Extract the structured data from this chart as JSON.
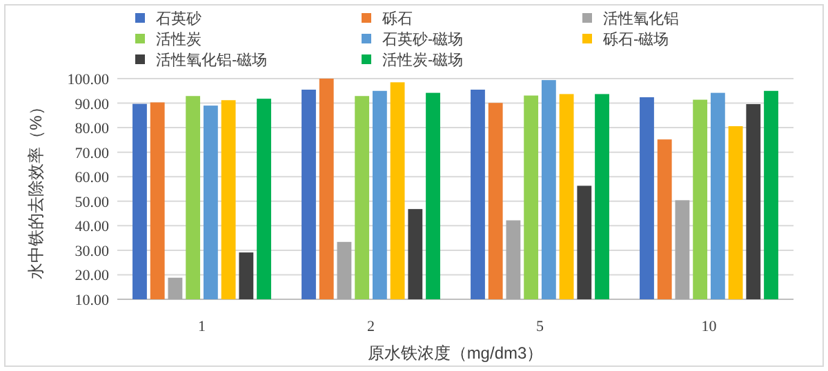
{
  "chart_data": {
    "type": "bar",
    "xlabel": "原水铁浓度（mg/dm3）",
    "ylabel": "水中铁的去除效率（%）",
    "categories": [
      "1",
      "2",
      "5",
      "10"
    ],
    "series": [
      {
        "name": "石英砂",
        "color": "#4472c4",
        "values": [
          89.7,
          95.5,
          95.5,
          92.4
        ]
      },
      {
        "name": "砾石",
        "color": "#ed7d31",
        "values": [
          90.3,
          100.0,
          90.1,
          75.2
        ]
      },
      {
        "name": "活性氧化铝",
        "color": "#a5a5a5",
        "values": [
          18.8,
          33.4,
          42.2,
          50.4
        ]
      },
      {
        "name": "活性炭",
        "color": "#92d050",
        "values": [
          92.9,
          92.9,
          93.1,
          91.4
        ]
      },
      {
        "name": "石英砂-磁场",
        "color": "#5b9bd5",
        "values": [
          89.0,
          95.0,
          99.4,
          94.2
        ]
      },
      {
        "name": "砾石-磁场",
        "color": "#ffc000",
        "values": [
          91.2,
          98.5,
          93.7,
          80.6
        ]
      },
      {
        "name": "活性氧化铝-磁场",
        "color": "#404040",
        "values": [
          29.1,
          46.8,
          56.3,
          89.6
        ]
      },
      {
        "name": "活性炭-磁场",
        "color": "#00b050",
        "values": [
          91.8,
          94.2,
          93.7,
          95.0
        ]
      }
    ],
    "ylim": [
      10,
      100
    ],
    "yticks": [
      {
        "value": 10,
        "label": "10.00"
      },
      {
        "value": 20,
        "label": "20.00"
      },
      {
        "value": 30,
        "label": "30.00"
      },
      {
        "value": 40,
        "label": "40.00"
      },
      {
        "value": 50,
        "label": "50.00"
      },
      {
        "value": 60,
        "label": "60.00"
      },
      {
        "value": 70,
        "label": "70.00"
      },
      {
        "value": 80,
        "label": "80.00"
      },
      {
        "value": 90,
        "label": "90.00"
      },
      {
        "value": 100,
        "label": "100.00"
      }
    ],
    "grid": "y",
    "legend": "top"
  }
}
